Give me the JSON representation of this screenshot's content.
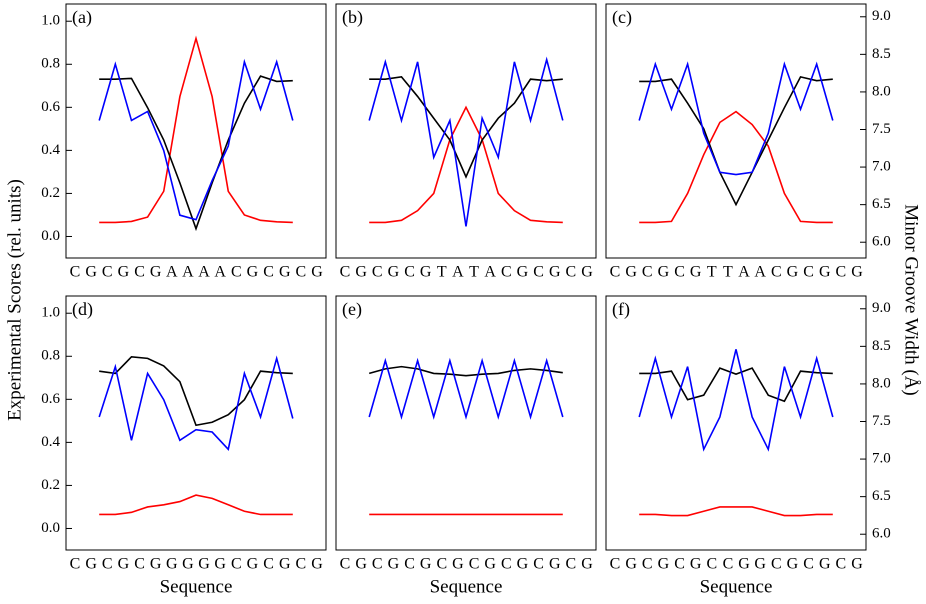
{
  "shared": {
    "ylabel": "Experimental Scores (rel. units)",
    "y2label": "Minor Groove Width (Å)"
  },
  "chart_data": [
    {
      "type": "line",
      "panel": "(a)",
      "categories": [
        "C",
        "G",
        "C",
        "G",
        "C",
        "G",
        "A",
        "A",
        "A",
        "A",
        "C",
        "G",
        "C",
        "G",
        "C",
        "G"
      ],
      "ylim": [
        -0.1,
        1.08
      ],
      "y2lim": [
        5.79,
        9.17
      ],
      "yticks": [
        {
          "value": 0,
          "label": "0.0"
        },
        {
          "value": 0.2,
          "label": "0.2"
        },
        {
          "value": 0.4,
          "label": "0.4"
        },
        {
          "value": 0.6,
          "label": "0.6"
        },
        {
          "value": 0.8,
          "label": "0.8"
        },
        {
          "value": 1,
          "label": "1.0"
        }
      ],
      "series": [
        {
          "color": "#ff0000",
          "values": [
            null,
            null,
            0.065,
            0.065,
            0.07,
            0.09,
            0.21,
            0.65,
            0.92,
            0.65,
            0.21,
            0.1,
            0.075,
            0.068,
            0.065,
            null
          ]
        },
        {
          "color": "#000000",
          "axis": "y2",
          "values": [
            null,
            null,
            8.17,
            8.17,
            8.18,
            7.79,
            7.36,
            6.79,
            6.18,
            6.79,
            7.36,
            7.85,
            8.21,
            8.14,
            8.15,
            null
          ]
        },
        {
          "color": "#0000ff",
          "axis": "y2",
          "values": [
            null,
            null,
            7.62,
            8.37,
            7.62,
            7.74,
            7.22,
            6.36,
            6.3,
            6.82,
            7.28,
            8.4,
            7.77,
            8.4,
            7.62,
            null
          ]
        }
      ]
    },
    {
      "type": "line",
      "panel": "(b)",
      "categories": [
        "C",
        "G",
        "C",
        "G",
        "C",
        "G",
        "T",
        "A",
        "T",
        "A",
        "C",
        "G",
        "C",
        "G",
        "C",
        "G"
      ],
      "ylim": [
        -0.1,
        1.08
      ],
      "y2lim": [
        5.79,
        9.17
      ],
      "series": [
        {
          "color": "#ff0000",
          "values": [
            null,
            null,
            0.065,
            0.065,
            0.075,
            0.12,
            0.2,
            0.45,
            0.6,
            0.45,
            0.2,
            0.12,
            0.075,
            0.068,
            0.065,
            null
          ]
        },
        {
          "color": "#000000",
          "axis": "y2",
          "values": [
            null,
            null,
            8.17,
            8.17,
            8.2,
            7.94,
            7.65,
            7.36,
            6.87,
            7.36,
            7.65,
            7.85,
            8.17,
            8.15,
            8.17,
            null
          ]
        },
        {
          "color": "#0000ff",
          "axis": "y2",
          "values": [
            null,
            null,
            7.62,
            8.4,
            7.62,
            8.4,
            7.13,
            7.62,
            6.21,
            7.65,
            7.13,
            8.4,
            7.62,
            8.43,
            7.62,
            null
          ]
        }
      ]
    },
    {
      "type": "line",
      "panel": "(c)",
      "categories": [
        "C",
        "G",
        "C",
        "G",
        "C",
        "G",
        "T",
        "T",
        "A",
        "A",
        "C",
        "G",
        "C",
        "G",
        "C",
        "G"
      ],
      "ylim": [
        -0.1,
        1.08
      ],
      "y2lim": [
        5.79,
        9.17
      ],
      "y2ticks": [
        {
          "value": 6,
          "label": "6.0"
        },
        {
          "value": 6.5,
          "label": "6.5"
        },
        {
          "value": 7,
          "label": "7.0"
        },
        {
          "value": 7.5,
          "label": "7.5"
        },
        {
          "value": 8,
          "label": "8.0"
        },
        {
          "value": 8.5,
          "label": "8.5"
        },
        {
          "value": 9,
          "label": "9.0"
        }
      ],
      "series": [
        {
          "color": "#ff0000",
          "values": [
            null,
            null,
            0.065,
            0.065,
            0.07,
            0.2,
            0.38,
            0.53,
            0.58,
            0.52,
            0.42,
            0.2,
            0.07,
            0.065,
            0.065,
            null
          ]
        },
        {
          "color": "#000000",
          "axis": "y2",
          "values": [
            null,
            null,
            8.14,
            8.14,
            8.17,
            7.85,
            7.51,
            6.93,
            6.5,
            6.93,
            7.36,
            7.79,
            8.2,
            8.15,
            8.17,
            null
          ]
        },
        {
          "color": "#0000ff",
          "axis": "y2",
          "values": [
            null,
            null,
            7.62,
            8.37,
            7.77,
            8.37,
            7.45,
            6.93,
            6.9,
            6.93,
            7.45,
            8.37,
            7.77,
            8.37,
            7.62,
            null
          ]
        }
      ]
    },
    {
      "type": "line",
      "panel": "(d)",
      "xlabel": "Sequence",
      "categories": [
        "C",
        "G",
        "C",
        "G",
        "C",
        "G",
        "G",
        "G",
        "G",
        "G",
        "C",
        "G",
        "C",
        "G",
        "C",
        "G"
      ],
      "ylim": [
        -0.1,
        1.08
      ],
      "y2lim": [
        5.79,
        9.17
      ],
      "yticks": [
        {
          "value": 0,
          "label": "0.0"
        },
        {
          "value": 0.2,
          "label": "0.2"
        },
        {
          "value": 0.4,
          "label": "0.4"
        },
        {
          "value": 0.6,
          "label": "0.6"
        },
        {
          "value": 0.8,
          "label": "0.8"
        },
        {
          "value": 1,
          "label": "1.0"
        }
      ],
      "series": [
        {
          "color": "#ff0000",
          "values": [
            null,
            null,
            0.065,
            0.065,
            0.075,
            0.1,
            0.11,
            0.125,
            0.155,
            0.14,
            0.11,
            0.08,
            0.065,
            0.065,
            0.065,
            null
          ]
        },
        {
          "color": "#000000",
          "axis": "y2",
          "values": [
            null,
            null,
            8.17,
            8.14,
            8.36,
            8.34,
            8.24,
            8.03,
            7.45,
            7.49,
            7.59,
            7.79,
            8.17,
            8.15,
            8.14,
            null
          ]
        },
        {
          "color": "#0000ff",
          "axis": "y2",
          "values": [
            null,
            null,
            7.56,
            8.23,
            7.25,
            8.14,
            7.79,
            7.25,
            7.39,
            7.36,
            7.13,
            8.14,
            7.56,
            8.34,
            7.54,
            null
          ]
        }
      ]
    },
    {
      "type": "line",
      "panel": "(e)",
      "xlabel": "Sequence",
      "categories": [
        "C",
        "G",
        "C",
        "G",
        "C",
        "G",
        "C",
        "G",
        "C",
        "G",
        "C",
        "G",
        "C",
        "G",
        "C",
        "G"
      ],
      "ylim": [
        -0.1,
        1.08
      ],
      "y2lim": [
        5.79,
        9.17
      ],
      "series": [
        {
          "color": "#ff0000",
          "values": [
            null,
            null,
            0.065,
            0.065,
            0.065,
            0.065,
            0.065,
            0.065,
            0.065,
            0.065,
            0.065,
            0.065,
            0.065,
            0.065,
            0.065,
            null
          ]
        },
        {
          "color": "#000000",
          "axis": "y2",
          "values": [
            null,
            null,
            8.14,
            8.2,
            8.23,
            8.2,
            8.14,
            8.13,
            8.11,
            8.13,
            8.14,
            8.18,
            8.2,
            8.18,
            8.15,
            null
          ]
        },
        {
          "color": "#0000ff",
          "axis": "y2",
          "values": [
            null,
            null,
            7.56,
            8.31,
            7.56,
            8.31,
            7.56,
            8.31,
            7.56,
            8.31,
            7.56,
            8.31,
            7.56,
            8.31,
            7.56,
            null
          ]
        }
      ]
    },
    {
      "type": "line",
      "panel": "(f)",
      "xlabel": "Sequence",
      "categories": [
        "C",
        "G",
        "C",
        "G",
        "C",
        "G",
        "C",
        "C",
        "G",
        "G",
        "C",
        "G",
        "C",
        "G",
        "C",
        "G"
      ],
      "ylim": [
        -0.1,
        1.08
      ],
      "y2lim": [
        5.79,
        9.17
      ],
      "y2ticks": [
        {
          "value": 6,
          "label": "6.0"
        },
        {
          "value": 6.5,
          "label": "6.5"
        },
        {
          "value": 7,
          "label": "7.0"
        },
        {
          "value": 7.5,
          "label": "7.5"
        },
        {
          "value": 8,
          "label": "8.0"
        },
        {
          "value": 8.5,
          "label": "8.5"
        },
        {
          "value": 9,
          "label": "9.0"
        }
      ],
      "series": [
        {
          "color": "#ff0000",
          "values": [
            null,
            null,
            0.065,
            0.065,
            0.06,
            0.06,
            0.08,
            0.1,
            0.1,
            0.1,
            0.08,
            0.06,
            0.06,
            0.065,
            0.065,
            null
          ]
        },
        {
          "color": "#000000",
          "axis": "y2",
          "values": [
            null,
            null,
            8.14,
            8.14,
            8.17,
            7.79,
            7.85,
            8.21,
            8.13,
            8.21,
            7.85,
            7.77,
            8.17,
            8.15,
            8.14,
            null
          ]
        },
        {
          "color": "#0000ff",
          "axis": "y2",
          "values": [
            null,
            null,
            7.56,
            8.34,
            7.56,
            8.23,
            7.13,
            7.56,
            8.46,
            7.56,
            7.13,
            8.23,
            7.56,
            8.34,
            7.56,
            null
          ]
        }
      ]
    }
  ]
}
